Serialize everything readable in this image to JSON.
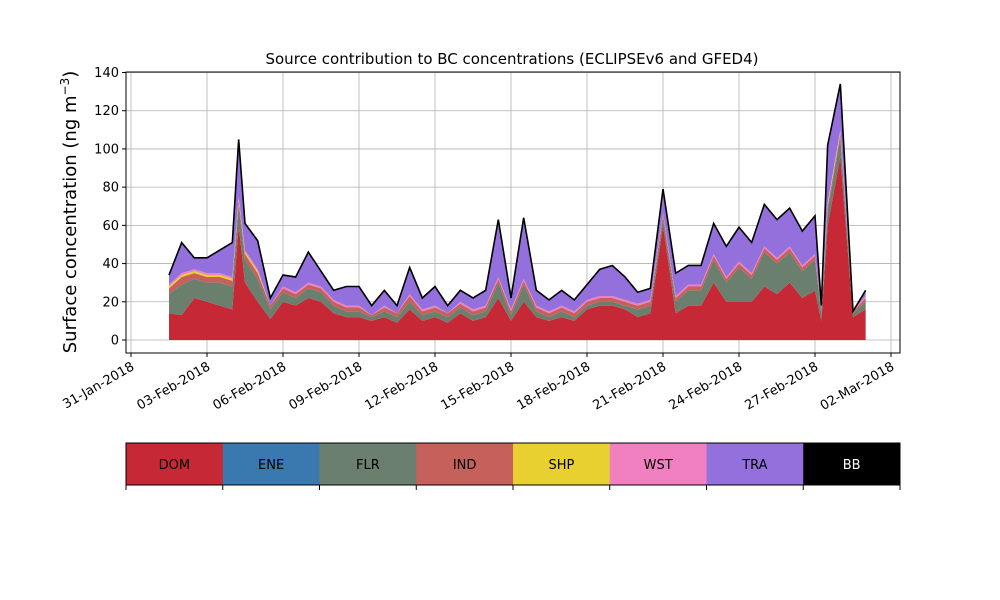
{
  "chart_data": {
    "type": "area",
    "stacked": true,
    "title": "Source contribution to BC concentrations (ECLIPSEv6 and GFED4)",
    "ylabel": "Surface concentration (ng m",
    "ylabel_sup": "−3",
    "ylabel_close": ")",
    "xlabel": "",
    "ylim": [
      0,
      140
    ],
    "xlim": [
      "2018-01-31",
      "2018-03-02"
    ],
    "grid": true,
    "legend_position": "bottom",
    "y_ticks": [
      0,
      20,
      40,
      60,
      80,
      100,
      120,
      140
    ],
    "x_ticks": [
      {
        "date": "2018-01-31",
        "label": "31-Jan-2018"
      },
      {
        "date": "2018-02-03",
        "label": "03-Feb-2018"
      },
      {
        "date": "2018-02-06",
        "label": "06-Feb-2018"
      },
      {
        "date": "2018-02-09",
        "label": "09-Feb-2018"
      },
      {
        "date": "2018-02-12",
        "label": "12-Feb-2018"
      },
      {
        "date": "2018-02-15",
        "label": "15-Feb-2018"
      },
      {
        "date": "2018-02-18",
        "label": "18-Feb-2018"
      },
      {
        "date": "2018-02-21",
        "label": "21-Feb-2018"
      },
      {
        "date": "2018-02-24",
        "label": "24-Feb-2018"
      },
      {
        "date": "2018-02-27",
        "label": "27-Feb-2018"
      },
      {
        "date": "2018-03-02",
        "label": "02-Mar-2018"
      }
    ],
    "x": [
      "2018-02-01T12:00",
      "2018-02-02T00:00",
      "2018-02-02T12:00",
      "2018-02-03T00:00",
      "2018-02-03T12:00",
      "2018-02-04T00:00",
      "2018-02-04T06:00",
      "2018-02-04T12:00",
      "2018-02-05T00:00",
      "2018-02-05T12:00",
      "2018-02-06T00:00",
      "2018-02-06T12:00",
      "2018-02-07T00:00",
      "2018-02-07T12:00",
      "2018-02-08T00:00",
      "2018-02-08T12:00",
      "2018-02-09T00:00",
      "2018-02-09T12:00",
      "2018-02-10T00:00",
      "2018-02-10T12:00",
      "2018-02-11T00:00",
      "2018-02-11T12:00",
      "2018-02-12T00:00",
      "2018-02-12T12:00",
      "2018-02-13T00:00",
      "2018-02-13T12:00",
      "2018-02-14T00:00",
      "2018-02-14T12:00",
      "2018-02-15T00:00",
      "2018-02-15T12:00",
      "2018-02-16T00:00",
      "2018-02-16T12:00",
      "2018-02-17T00:00",
      "2018-02-17T12:00",
      "2018-02-18T00:00",
      "2018-02-18T12:00",
      "2018-02-19T00:00",
      "2018-02-19T12:00",
      "2018-02-20T00:00",
      "2018-02-20T12:00",
      "2018-02-21T00:00",
      "2018-02-21T12:00",
      "2018-02-22T00:00",
      "2018-02-22T12:00",
      "2018-02-23T00:00",
      "2018-02-23T12:00",
      "2018-02-24T00:00",
      "2018-02-24T12:00",
      "2018-02-25T00:00",
      "2018-02-25T12:00",
      "2018-02-26T00:00",
      "2018-02-26T12:00",
      "2018-02-27T00:00",
      "2018-02-27T06:00",
      "2018-02-27T12:00",
      "2018-02-28T00:00",
      "2018-02-28T12:00",
      "2018-03-01T00:00"
    ],
    "series": [
      {
        "name": "DOM",
        "color": "#c62836",
        "values": [
          14,
          13,
          22,
          20,
          18,
          16,
          60,
          30,
          20,
          11,
          20,
          18,
          22,
          20,
          14,
          12,
          12,
          10,
          12,
          9,
          16,
          10,
          12,
          9,
          14,
          10,
          12,
          22,
          10,
          20,
          12,
          10,
          12,
          10,
          16,
          18,
          18,
          16,
          12,
          14,
          60,
          14,
          18,
          18,
          30,
          20,
          20,
          20,
          28,
          24,
          30,
          22,
          26,
          10,
          60,
          96,
          12,
          16
        ]
      },
      {
        "name": "ENE",
        "color": "#3a78b0",
        "values": [
          0,
          0,
          0,
          0,
          0,
          0,
          0,
          0,
          0,
          0,
          0,
          0,
          0,
          0,
          0,
          0,
          0,
          0,
          0,
          0,
          0,
          0,
          0,
          0,
          0,
          0,
          0,
          0,
          0,
          0,
          0,
          0,
          0,
          0,
          0,
          0,
          0,
          0,
          0,
          0,
          0,
          0,
          0,
          0,
          0,
          0,
          0,
          0,
          0,
          0,
          0,
          0,
          0,
          0,
          0,
          0,
          0,
          0
        ]
      },
      {
        "name": "FLR",
        "color": "#6b7f6e",
        "values": [
          10,
          16,
          10,
          10,
          12,
          12,
          10,
          12,
          12,
          5,
          5,
          4,
          5,
          5,
          4,
          3,
          3,
          2,
          3,
          3,
          4,
          3,
          3,
          3,
          3,
          3,
          3,
          8,
          3,
          9,
          3,
          2,
          3,
          2,
          2,
          2,
          2,
          2,
          4,
          4,
          4,
          6,
          8,
          8,
          12,
          10,
          18,
          12,
          18,
          16,
          16,
          14,
          16,
          4,
          8,
          10,
          2,
          4
        ]
      },
      {
        "name": "IND",
        "color": "#c6605a",
        "values": [
          3,
          4,
          3,
          3,
          3,
          3,
          3,
          3,
          3,
          2,
          2,
          2,
          2,
          2,
          2,
          2,
          2,
          1,
          2,
          2,
          3,
          2,
          2,
          2,
          2,
          2,
          2,
          2,
          2,
          2,
          2,
          2,
          2,
          2,
          2,
          2,
          2,
          2,
          2,
          2,
          2,
          2,
          2,
          2,
          2,
          2,
          2,
          2,
          2,
          2,
          2,
          2,
          2,
          1,
          2,
          2,
          1,
          2
        ]
      },
      {
        "name": "SHP",
        "color": "#e8d030",
        "values": [
          1,
          1,
          1,
          1,
          1,
          1,
          1,
          1,
          1,
          0,
          0,
          0,
          0,
          0,
          0,
          0,
          0,
          0,
          0,
          0,
          0,
          0,
          0,
          0,
          0,
          0,
          0,
          0,
          0,
          0,
          0,
          0,
          0,
          0,
          0,
          0,
          0,
          0,
          0,
          0,
          0,
          0,
          0,
          0,
          0,
          0,
          0,
          0,
          0,
          0,
          0,
          0,
          0,
          0,
          1,
          1,
          0,
          0
        ]
      },
      {
        "name": "WST",
        "color": "#f080c0",
        "values": [
          1,
          1,
          1,
          1,
          1,
          1,
          1,
          1,
          1,
          0,
          1,
          1,
          1,
          1,
          1,
          1,
          1,
          0,
          1,
          0,
          1,
          1,
          1,
          0,
          1,
          1,
          1,
          1,
          1,
          1,
          1,
          1,
          1,
          1,
          1,
          1,
          1,
          1,
          1,
          1,
          1,
          1,
          1,
          1,
          1,
          1,
          1,
          1,
          1,
          1,
          1,
          1,
          1,
          0,
          1,
          1,
          0,
          1
        ]
      },
      {
        "name": "TRA",
        "color": "#9370db",
        "values": [
          5,
          16,
          6,
          8,
          12,
          18,
          30,
          14,
          15,
          4,
          6,
          8,
          16,
          8,
          5,
          10,
          10,
          5,
          8,
          4,
          14,
          6,
          10,
          4,
          6,
          6,
          8,
          30,
          6,
          32,
          8,
          6,
          8,
          6,
          8,
          14,
          16,
          12,
          6,
          6,
          12,
          12,
          10,
          10,
          16,
          16,
          18,
          16,
          22,
          20,
          20,
          18,
          20,
          3,
          30,
          24,
          0,
          3
        ]
      },
      {
        "name": "BB",
        "color": "#000000",
        "values": [
          0,
          0,
          0,
          0,
          0,
          0,
          0,
          0,
          0,
          0,
          0,
          0,
          0,
          0,
          0,
          0,
          0,
          0,
          0,
          0,
          0,
          0,
          0,
          0,
          0,
          0,
          0,
          0,
          0,
          0,
          0,
          0,
          0,
          0,
          0,
          0,
          0,
          0,
          0,
          0,
          0,
          0,
          0,
          0,
          0,
          0,
          0,
          0,
          0,
          0,
          0,
          0,
          0,
          0,
          0,
          0,
          0,
          0
        ]
      }
    ],
    "legend": [
      "DOM",
      "ENE",
      "FLR",
      "IND",
      "SHP",
      "WST",
      "TRA",
      "BB"
    ]
  }
}
